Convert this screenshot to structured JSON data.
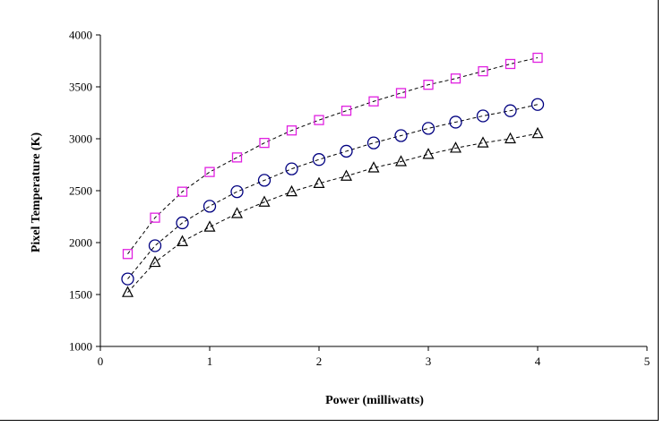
{
  "chart_data": {
    "type": "scatter",
    "xlabel": "Power (milliwatts)",
    "ylabel": "Pixel Temperature (K)",
    "xlim": [
      0,
      5
    ],
    "ylim": [
      1000,
      4000
    ],
    "xticks": [
      0,
      1,
      2,
      3,
      4,
      5
    ],
    "yticks": [
      1000,
      1500,
      2000,
      2500,
      3000,
      3500,
      4000
    ],
    "grid": false,
    "legend": "none",
    "x": [
      0.25,
      0.5,
      0.75,
      1.0,
      1.25,
      1.5,
      1.75,
      2.0,
      2.25,
      2.5,
      2.75,
      3.0,
      3.25,
      3.5,
      3.75,
      4.0
    ],
    "series": [
      {
        "marker": "square",
        "color": "#e020e0",
        "values": [
          1890,
          2240,
          2490,
          2680,
          2820,
          2960,
          3080,
          3180,
          3270,
          3360,
          3440,
          3520,
          3580,
          3650,
          3720,
          3780
        ]
      },
      {
        "marker": "circle",
        "color": "#000080",
        "values": [
          1650,
          1970,
          2190,
          2350,
          2490,
          2600,
          2710,
          2800,
          2880,
          2960,
          3030,
          3100,
          3160,
          3220,
          3270,
          3330
        ]
      },
      {
        "marker": "triangle",
        "color": "#000000",
        "values": [
          1520,
          1810,
          2010,
          2150,
          2280,
          2390,
          2490,
          2570,
          2640,
          2720,
          2780,
          2850,
          2910,
          2960,
          3000,
          3050
        ]
      }
    ],
    "fit_line_style": "dashed",
    "fit_line_color": "#000000"
  }
}
